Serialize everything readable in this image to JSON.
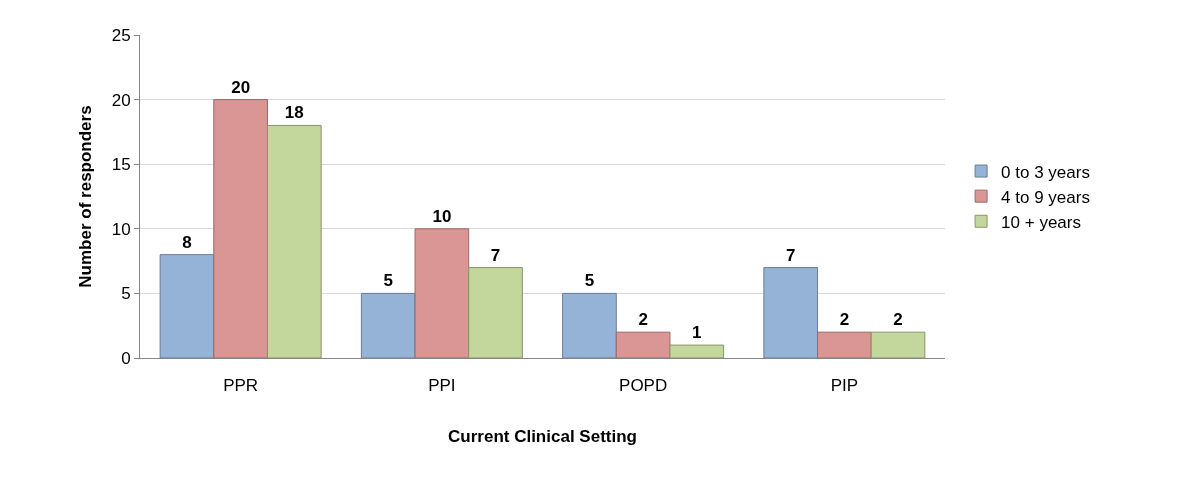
{
  "chart_data": {
    "type": "bar",
    "xlabel": "Current Clinical Setting",
    "ylabel": "Number of responders",
    "categories": [
      "PPR",
      "PPI",
      "POPD",
      "PIP"
    ],
    "series": [
      {
        "name": "0 to 3 years",
        "color": "#95b3d7",
        "values": [
          8,
          5,
          5,
          7
        ]
      },
      {
        "name": "4 to 9 years",
        "color": "#d99694",
        "values": [
          20,
          10,
          2,
          2
        ]
      },
      {
        "name": "10 + years",
        "color": "#c3d69b",
        "values": [
          18,
          7,
          1,
          2
        ]
      }
    ],
    "ylim": [
      0,
      25
    ],
    "yticks": [
      0,
      5,
      10,
      15,
      20,
      25
    ],
    "grid": "y",
    "legend": "right",
    "data_labels": true
  }
}
